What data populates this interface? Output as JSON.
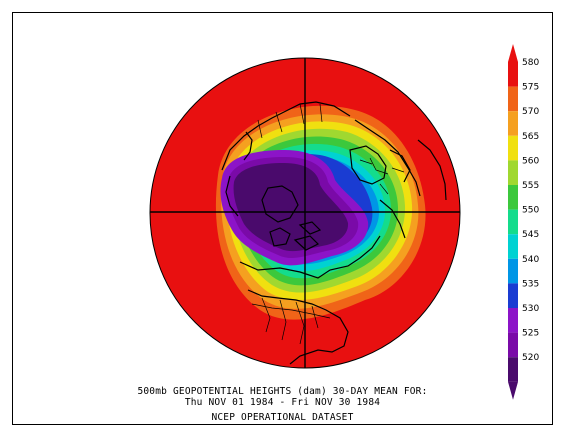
{
  "caption": {
    "line1": "500mb GEOPOTENTIAL HEIGHTS (dam)   30-DAY MEAN FOR:",
    "line2": "Thu NOV 01 1984 - Fri NOV 30 1984",
    "line3": "NCEP OPERATIONAL DATASET"
  },
  "colorbar": {
    "unit": "dam",
    "levels": [
      {
        "value": "580",
        "color": "#e81010"
      },
      {
        "value": "575",
        "color": "#f06418"
      },
      {
        "value": "570",
        "color": "#f5a020"
      },
      {
        "value": "565",
        "color": "#f0e010"
      },
      {
        "value": "560",
        "color": "#a0d830"
      },
      {
        "value": "555",
        "color": "#3cc83c"
      },
      {
        "value": "550",
        "color": "#14dc8c"
      },
      {
        "value": "545",
        "color": "#00d2d2"
      },
      {
        "value": "540",
        "color": "#0096e6"
      },
      {
        "value": "535",
        "color": "#1a3cd2"
      },
      {
        "value": "530",
        "color": "#8c14c8"
      },
      {
        "value": "525",
        "color": "#7a0aa8"
      },
      {
        "value": "520",
        "color": "#4a0a6c"
      }
    ],
    "top_arrow_color": "#e81010",
    "bottom_arrow_color": "#4a0a6c"
  },
  "map": {
    "projection": "polar stereographic, north pole",
    "background_color": "#e81010",
    "coastline_color": "#000000"
  }
}
